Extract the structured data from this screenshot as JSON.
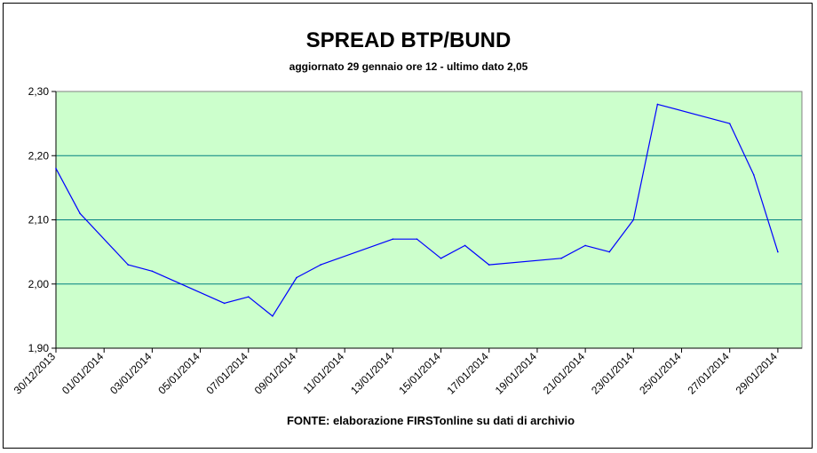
{
  "chart_data": {
    "type": "line",
    "title": "SPREAD BTP/BUND",
    "subtitle": "aggiornato 29 gennaio ore 12 - ultimo dato 2,05",
    "source": "FONTE: elaborazione FIRSTonline su dati di archivio",
    "xlabel": "",
    "ylabel": "",
    "ylim": [
      1.9,
      2.3
    ],
    "y_ticks": [
      {
        "value": 1.9,
        "label": "1,90"
      },
      {
        "value": 2.0,
        "label": "2,00"
      },
      {
        "value": 2.1,
        "label": "2,10"
      },
      {
        "value": 2.2,
        "label": "2,20"
      },
      {
        "value": 2.3,
        "label": "2,30"
      }
    ],
    "xlim": [
      "2013-12-30",
      "2014-01-30"
    ],
    "x_tick_labels": [
      "30/12/2013",
      "01/01/2014",
      "03/01/2014",
      "05/01/2014",
      "07/01/2014",
      "09/01/2014",
      "11/01/2014",
      "13/01/2014",
      "15/01/2014",
      "17/01/2014",
      "19/01/2014",
      "21/01/2014",
      "23/01/2014",
      "25/01/2014",
      "27/01/2014",
      "29/01/2014"
    ],
    "grid": true,
    "plot_background": "#ccffcc",
    "gridline_color": "#008080",
    "line_color": "#0000ff",
    "series": [
      {
        "x": [
          "2013-12-30",
          "2013-12-31",
          "2014-01-02",
          "2014-01-03",
          "2014-01-06",
          "2014-01-07",
          "2014-01-08",
          "2014-01-09",
          "2014-01-10",
          "2014-01-13",
          "2014-01-14",
          "2014-01-15",
          "2014-01-16",
          "2014-01-17",
          "2014-01-20",
          "2014-01-21",
          "2014-01-22",
          "2014-01-23",
          "2014-01-24",
          "2014-01-27",
          "2014-01-28",
          "2014-01-29"
        ],
        "values": [
          2.18,
          2.11,
          2.03,
          2.02,
          1.97,
          1.98,
          1.95,
          2.01,
          2.03,
          2.07,
          2.07,
          2.04,
          2.06,
          2.03,
          2.04,
          2.06,
          2.05,
          2.1,
          2.28,
          2.25,
          2.17,
          2.05
        ]
      }
    ]
  }
}
